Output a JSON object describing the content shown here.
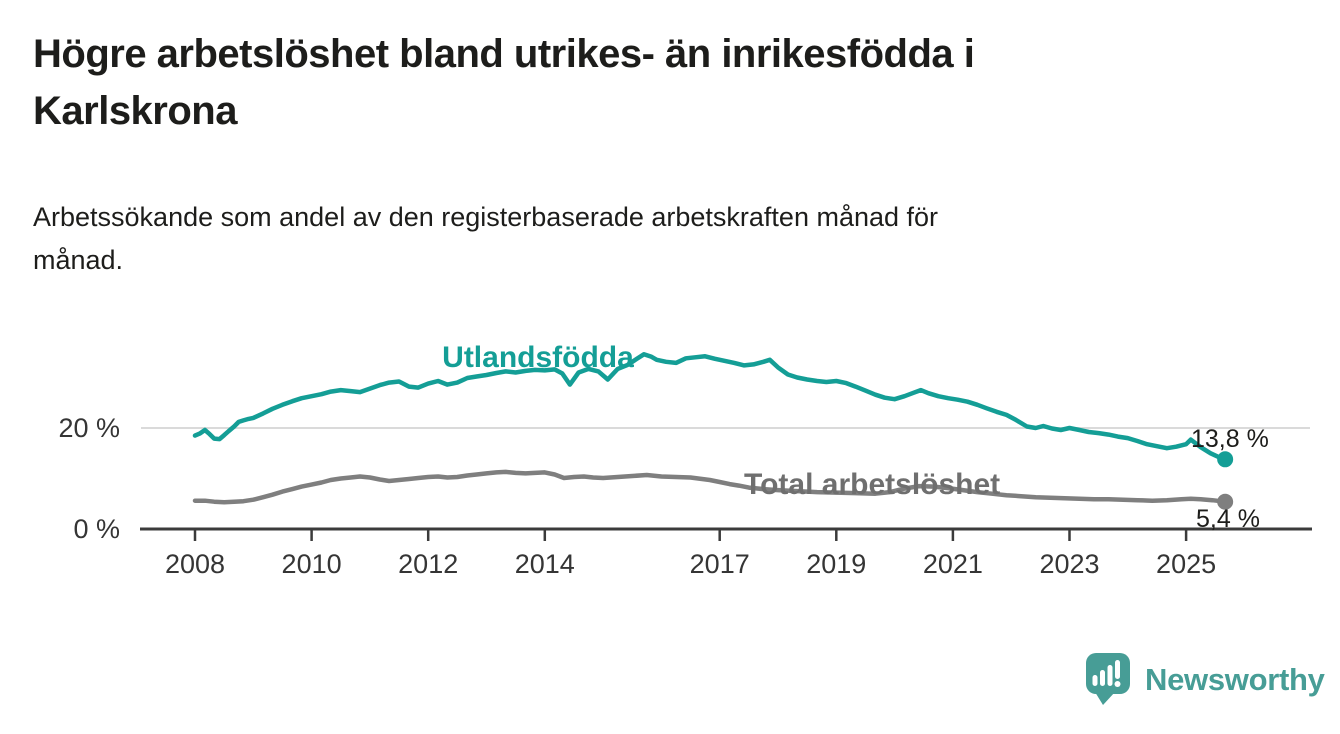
{
  "header": {
    "title_lines": [
      "Högre arbetslöshet bland utrikes- än inrikesfödda i",
      "Karlskrona"
    ],
    "subtitle_lines": [
      "Arbetssökande som andel av den registerbaserade arbetskraften månad för",
      "månad."
    ]
  },
  "chart_data": {
    "type": "line",
    "unit": "%",
    "title": "Högre arbetslöshet bland utrikes- än inrikesfödda i Karlskrona",
    "subtitle": "Arbetssökande som andel av den registerbaserade arbetskraften månad för månad.",
    "x_axis": {
      "start": 2008.0,
      "end": 2025.67,
      "ticks": [
        {
          "year": 2008,
          "label": "2008"
        },
        {
          "year": 2010,
          "label": "2010"
        },
        {
          "year": 2012,
          "label": "2012"
        },
        {
          "year": 2014,
          "label": "2014"
        },
        {
          "year": 2017,
          "label": "2017"
        },
        {
          "year": 2019,
          "label": "2019"
        },
        {
          "year": 2021,
          "label": "2021"
        },
        {
          "year": 2023,
          "label": "2023"
        },
        {
          "year": 2025,
          "label": "2025"
        }
      ]
    },
    "y_axis": {
      "range": [
        0,
        40
      ],
      "ticks": [
        {
          "value": 20,
          "label": "20 %"
        },
        {
          "value": 0,
          "label": "0 %"
        }
      ],
      "gridline_values": [
        20
      ]
    },
    "legend_position": "inline-labels",
    "series": [
      {
        "name": "Utlandsfödda",
        "color": "#149e96",
        "label_color": "#149e96",
        "end_value": 13.8,
        "end_value_label": "13,8 %",
        "points": [
          [
            2008.0,
            18.5
          ],
          [
            2008.08,
            18.9
          ],
          [
            2008.17,
            19.6
          ],
          [
            2008.25,
            18.8
          ],
          [
            2008.33,
            17.9
          ],
          [
            2008.42,
            17.8
          ],
          [
            2008.5,
            18.6
          ],
          [
            2008.58,
            19.4
          ],
          [
            2008.67,
            20.3
          ],
          [
            2008.75,
            21.2
          ],
          [
            2008.83,
            21.5
          ],
          [
            2008.92,
            21.8
          ],
          [
            2009.0,
            22.0
          ],
          [
            2009.17,
            22.9
          ],
          [
            2009.33,
            23.8
          ],
          [
            2009.5,
            24.6
          ],
          [
            2009.67,
            25.3
          ],
          [
            2009.83,
            25.9
          ],
          [
            2010.0,
            26.3
          ],
          [
            2010.17,
            26.7
          ],
          [
            2010.33,
            27.2
          ],
          [
            2010.5,
            27.5
          ],
          [
            2010.67,
            27.3
          ],
          [
            2010.83,
            27.1
          ],
          [
            2011.0,
            27.8
          ],
          [
            2011.17,
            28.5
          ],
          [
            2011.33,
            29.0
          ],
          [
            2011.5,
            29.2
          ],
          [
            2011.67,
            28.2
          ],
          [
            2011.83,
            28.0
          ],
          [
            2012.0,
            28.8
          ],
          [
            2012.17,
            29.3
          ],
          [
            2012.33,
            28.6
          ],
          [
            2012.5,
            29.0
          ],
          [
            2012.67,
            29.9
          ],
          [
            2012.83,
            30.2
          ],
          [
            2013.0,
            30.5
          ],
          [
            2013.17,
            30.9
          ],
          [
            2013.33,
            31.2
          ],
          [
            2013.5,
            31.0
          ],
          [
            2013.67,
            31.3
          ],
          [
            2013.83,
            31.5
          ],
          [
            2014.0,
            31.4
          ],
          [
            2014.17,
            31.6
          ],
          [
            2014.3,
            30.8
          ],
          [
            2014.43,
            28.6
          ],
          [
            2014.58,
            31.0
          ],
          [
            2014.75,
            31.7
          ],
          [
            2014.92,
            31.2
          ],
          [
            2015.08,
            29.6
          ],
          [
            2015.25,
            31.7
          ],
          [
            2015.42,
            32.5
          ],
          [
            2015.58,
            33.7
          ],
          [
            2015.7,
            34.6
          ],
          [
            2015.83,
            34.1
          ],
          [
            2015.92,
            33.5
          ],
          [
            2016.08,
            33.1
          ],
          [
            2016.25,
            32.9
          ],
          [
            2016.42,
            33.8
          ],
          [
            2016.58,
            34.0
          ],
          [
            2016.75,
            34.2
          ],
          [
            2016.92,
            33.7
          ],
          [
            2017.08,
            33.3
          ],
          [
            2017.25,
            32.9
          ],
          [
            2017.42,
            32.4
          ],
          [
            2017.58,
            32.6
          ],
          [
            2017.75,
            33.1
          ],
          [
            2017.86,
            33.5
          ],
          [
            2018.0,
            32.0
          ],
          [
            2018.17,
            30.6
          ],
          [
            2018.33,
            30.0
          ],
          [
            2018.5,
            29.6
          ],
          [
            2018.67,
            29.3
          ],
          [
            2018.83,
            29.1
          ],
          [
            2019.0,
            29.3
          ],
          [
            2019.17,
            28.9
          ],
          [
            2019.33,
            28.2
          ],
          [
            2019.5,
            27.4
          ],
          [
            2019.67,
            26.6
          ],
          [
            2019.83,
            26.0
          ],
          [
            2020.0,
            25.7
          ],
          [
            2020.17,
            26.3
          ],
          [
            2020.33,
            27.0
          ],
          [
            2020.45,
            27.5
          ],
          [
            2020.58,
            26.9
          ],
          [
            2020.75,
            26.3
          ],
          [
            2020.92,
            25.9
          ],
          [
            2021.08,
            25.6
          ],
          [
            2021.25,
            25.2
          ],
          [
            2021.42,
            24.6
          ],
          [
            2021.58,
            23.9
          ],
          [
            2021.75,
            23.2
          ],
          [
            2021.92,
            22.6
          ],
          [
            2022.08,
            21.6
          ],
          [
            2022.27,
            20.3
          ],
          [
            2022.42,
            20.0
          ],
          [
            2022.55,
            20.4
          ],
          [
            2022.7,
            19.9
          ],
          [
            2022.85,
            19.6
          ],
          [
            2023.0,
            20.0
          ],
          [
            2023.17,
            19.6
          ],
          [
            2023.33,
            19.2
          ],
          [
            2023.5,
            19.0
          ],
          [
            2023.67,
            18.7
          ],
          [
            2023.83,
            18.3
          ],
          [
            2024.0,
            18.0
          ],
          [
            2024.17,
            17.4
          ],
          [
            2024.33,
            16.8
          ],
          [
            2024.5,
            16.4
          ],
          [
            2024.67,
            16.0
          ],
          [
            2024.83,
            16.3
          ],
          [
            2025.0,
            16.8
          ],
          [
            2025.08,
            17.7
          ],
          [
            2025.25,
            16.2
          ],
          [
            2025.42,
            15.0
          ],
          [
            2025.55,
            14.3
          ],
          [
            2025.67,
            13.8
          ]
        ]
      },
      {
        "name": "Total arbetslöshet",
        "color": "#7f7f7f",
        "label_color": "#6f6f6f",
        "end_value": 5.4,
        "end_value_label": "5,4 %",
        "points": [
          [
            2008.0,
            5.6
          ],
          [
            2008.17,
            5.6
          ],
          [
            2008.33,
            5.4
          ],
          [
            2008.5,
            5.3
          ],
          [
            2008.67,
            5.4
          ],
          [
            2008.83,
            5.5
          ],
          [
            2009.0,
            5.8
          ],
          [
            2009.17,
            6.3
          ],
          [
            2009.33,
            6.8
          ],
          [
            2009.5,
            7.4
          ],
          [
            2009.67,
            7.9
          ],
          [
            2009.83,
            8.4
          ],
          [
            2010.0,
            8.8
          ],
          [
            2010.17,
            9.2
          ],
          [
            2010.33,
            9.7
          ],
          [
            2010.5,
            10.0
          ],
          [
            2010.67,
            10.2
          ],
          [
            2010.83,
            10.4
          ],
          [
            2011.0,
            10.2
          ],
          [
            2011.17,
            9.8
          ],
          [
            2011.33,
            9.5
          ],
          [
            2011.5,
            9.7
          ],
          [
            2011.67,
            9.9
          ],
          [
            2011.83,
            10.1
          ],
          [
            2012.0,
            10.3
          ],
          [
            2012.17,
            10.4
          ],
          [
            2012.33,
            10.2
          ],
          [
            2012.5,
            10.3
          ],
          [
            2012.67,
            10.6
          ],
          [
            2012.83,
            10.8
          ],
          [
            2013.0,
            11.0
          ],
          [
            2013.17,
            11.2
          ],
          [
            2013.33,
            11.3
          ],
          [
            2013.5,
            11.1
          ],
          [
            2013.67,
            11.0
          ],
          [
            2013.83,
            11.1
          ],
          [
            2014.0,
            11.2
          ],
          [
            2014.17,
            10.8
          ],
          [
            2014.33,
            10.1
          ],
          [
            2014.5,
            10.3
          ],
          [
            2014.67,
            10.4
          ],
          [
            2014.83,
            10.2
          ],
          [
            2015.0,
            10.1
          ],
          [
            2015.25,
            10.3
          ],
          [
            2015.5,
            10.5
          ],
          [
            2015.75,
            10.7
          ],
          [
            2016.0,
            10.4
          ],
          [
            2016.25,
            10.3
          ],
          [
            2016.5,
            10.2
          ],
          [
            2016.83,
            9.7
          ],
          [
            2017.0,
            9.3
          ],
          [
            2017.17,
            8.9
          ],
          [
            2017.33,
            8.6
          ],
          [
            2017.5,
            8.2
          ],
          [
            2017.75,
            7.9
          ],
          [
            2018.0,
            7.7
          ],
          [
            2018.33,
            7.5
          ],
          [
            2018.67,
            7.3
          ],
          [
            2019.0,
            7.2
          ],
          [
            2019.33,
            7.1
          ],
          [
            2019.67,
            7.0
          ],
          [
            2019.92,
            7.3
          ],
          [
            2020.17,
            8.0
          ],
          [
            2020.42,
            8.5
          ],
          [
            2020.67,
            8.4
          ],
          [
            2020.92,
            8.1
          ],
          [
            2021.17,
            7.7
          ],
          [
            2021.42,
            7.3
          ],
          [
            2021.67,
            7.0
          ],
          [
            2021.92,
            6.7
          ],
          [
            2022.17,
            6.5
          ],
          [
            2022.42,
            6.3
          ],
          [
            2022.67,
            6.2
          ],
          [
            2022.92,
            6.1
          ],
          [
            2023.17,
            6.0
          ],
          [
            2023.42,
            5.9
          ],
          [
            2023.67,
            5.9
          ],
          [
            2023.92,
            5.8
          ],
          [
            2024.17,
            5.7
          ],
          [
            2024.42,
            5.6
          ],
          [
            2024.67,
            5.7
          ],
          [
            2024.92,
            5.9
          ],
          [
            2025.08,
            6.0
          ],
          [
            2025.25,
            5.9
          ],
          [
            2025.45,
            5.7
          ],
          [
            2025.67,
            5.4
          ]
        ]
      }
    ]
  },
  "branding": {
    "name": "Newsworthy",
    "color": "#479d96"
  },
  "colors": {
    "text": "#1d1d1b",
    "axis": "#3b3b3b",
    "axis_labels": "#353535",
    "gridline": "#dadada"
  }
}
